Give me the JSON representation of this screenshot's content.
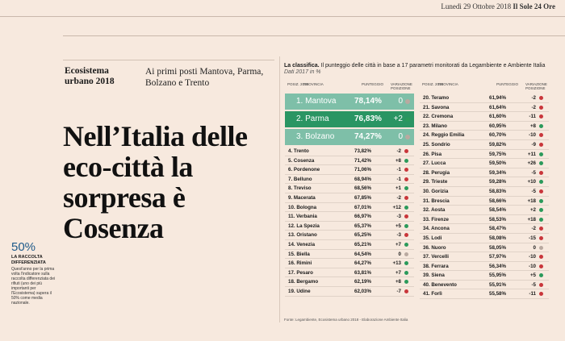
{
  "header": {
    "date": "Lunedì 29 Ottobre 2018",
    "paper": "Il Sole 24 Ore"
  },
  "article": {
    "kicker": "Ecosistema urbano 2018",
    "subhead": "Ai primi posti Mantova, Parma, Bolzano e Trento",
    "headline": "Nell’Italia delle eco-città la sorpresa è Cosenza"
  },
  "sidebar": {
    "value": "50%",
    "label": "LA RACCOLTA DIFFERENZIATA",
    "text": "Quest'anno per la prima volta l'indicatore sulla raccolta differenziata dei rifiuti (uno dei più importanti per l'Ecosistema) supera il 50% come media nazionale."
  },
  "table": {
    "title_bold": "La classifica.",
    "title_rest": " Il punteggio delle città in base a 17 parametri monitorati da Legambiente e Ambiente Italia",
    "subtitle": "Dati 2017 in %",
    "col_pos": "POSIZ. 2018",
    "col_prov": "PROVINCIA",
    "col_score": "PUNTEGGIO",
    "col_var": "VARIAZIONE POSIZIONE",
    "footer": "Fonte: Legambiente, Ecosistema urbano 2018 - Elaborazione Ambiente Italia",
    "top3": [
      {
        "name": "1. Mantova",
        "score": "78,14%",
        "var": "0",
        "trend": "eq"
      },
      {
        "name": "2. Parma",
        "score": "76,83%",
        "var": "+2",
        "trend": "up"
      },
      {
        "name": "3. Bolzano",
        "score": "74,27%",
        "var": "0",
        "trend": "eq"
      }
    ],
    "left": [
      {
        "name": "4. Trento",
        "score": "73,82%",
        "var": "-2",
        "trend": "down"
      },
      {
        "name": "5. Cosenza",
        "score": "71,42%",
        "var": "+8",
        "trend": "up"
      },
      {
        "name": "6. Pordenone",
        "score": "71,06%",
        "var": "-1",
        "trend": "down"
      },
      {
        "name": "7. Belluno",
        "score": "68,94%",
        "var": "-1",
        "trend": "down"
      },
      {
        "name": "8. Treviso",
        "score": "68,56%",
        "var": "+1",
        "trend": "up"
      },
      {
        "name": "9. Macerata",
        "score": "67,85%",
        "var": "-2",
        "trend": "down"
      },
      {
        "name": "10. Bologna",
        "score": "67,01%",
        "var": "+12",
        "trend": "up"
      },
      {
        "name": "11. Verbania",
        "score": "66,97%",
        "var": "-3",
        "trend": "down"
      },
      {
        "name": "12. La Spezia",
        "score": "65,37%",
        "var": "+5",
        "trend": "up"
      },
      {
        "name": "13. Oristano",
        "score": "65,25%",
        "var": "-3",
        "trend": "down"
      },
      {
        "name": "14. Venezia",
        "score": "65,21%",
        "var": "+7",
        "trend": "up"
      },
      {
        "name": "15. Biella",
        "score": "64,54%",
        "var": "0",
        "trend": "eq"
      },
      {
        "name": "16. Rimini",
        "score": "64,27%",
        "var": "+13",
        "trend": "up"
      },
      {
        "name": "17. Pesaro",
        "score": "63,81%",
        "var": "+7",
        "trend": "up"
      },
      {
        "name": "18. Bergamo",
        "score": "62,19%",
        "var": "+8",
        "trend": "up"
      },
      {
        "name": "19. Udine",
        "score": "62,03%",
        "var": "-7",
        "trend": "down"
      }
    ],
    "right": [
      {
        "name": "20. Teramo",
        "score": "61,94%",
        "var": "-2",
        "trend": "down"
      },
      {
        "name": "21. Savona",
        "score": "61,64%",
        "var": "-2",
        "trend": "down"
      },
      {
        "name": "22. Cremona",
        "score": "61,60%",
        "var": "-11",
        "trend": "down"
      },
      {
        "name": "23. Milano",
        "score": "60,95%",
        "var": "+8",
        "trend": "up"
      },
      {
        "name": "24. Reggio Emilia",
        "score": "60,70%",
        "var": "-10",
        "trend": "down"
      },
      {
        "name": "25. Sondrio",
        "score": "59,82%",
        "var": "-9",
        "trend": "down"
      },
      {
        "name": "26. Pisa",
        "score": "59,75%",
        "var": "+11",
        "trend": "up"
      },
      {
        "name": "27. Lucca",
        "score": "59,50%",
        "var": "+26",
        "trend": "up"
      },
      {
        "name": "28. Perugia",
        "score": "59,34%",
        "var": "-5",
        "trend": "down"
      },
      {
        "name": "29. Trieste",
        "score": "59,28%",
        "var": "+10",
        "trend": "up"
      },
      {
        "name": "30. Gorizia",
        "score": "58,83%",
        "var": "-5",
        "trend": "down"
      },
      {
        "name": "31. Brescia",
        "score": "58,66%",
        "var": "+18",
        "trend": "up"
      },
      {
        "name": "32. Aosta",
        "score": "58,54%",
        "var": "+2",
        "trend": "up"
      },
      {
        "name": "33. Firenze",
        "score": "58,53%",
        "var": "+18",
        "trend": "up"
      },
      {
        "name": "34. Ancona",
        "score": "58,47%",
        "var": "-2",
        "trend": "down"
      },
      {
        "name": "35. Lodi",
        "score": "58,08%",
        "var": "-15",
        "trend": "down"
      },
      {
        "name": "36. Nuoro",
        "score": "58,05%",
        "var": "0",
        "trend": "eq"
      },
      {
        "name": "37. Vercelli",
        "score": "57,97%",
        "var": "-10",
        "trend": "down"
      },
      {
        "name": "38. Ferrara",
        "score": "56,34%",
        "var": "-10",
        "trend": "down"
      },
      {
        "name": "39. Siena",
        "score": "55,95%",
        "var": "+5",
        "trend": "up"
      },
      {
        "name": "40. Benevento",
        "score": "55,91%",
        "var": "-5",
        "trend": "down"
      },
      {
        "name": "41. Forlì",
        "score": "55,58%",
        "var": "-11",
        "trend": "down"
      }
    ]
  }
}
